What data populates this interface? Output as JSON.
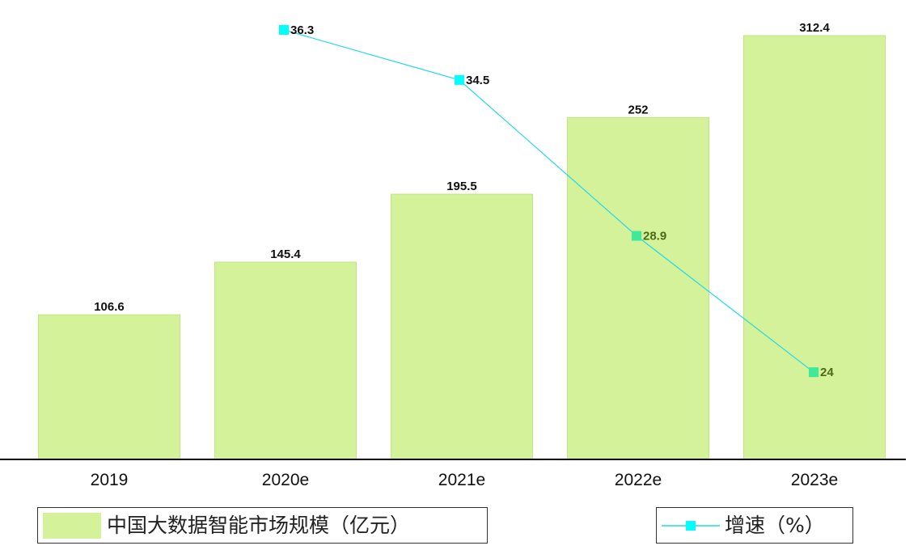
{
  "chart_data": {
    "type": "bar",
    "categories": [
      "2019",
      "2020e",
      "2021e",
      "2022e",
      "2023e"
    ],
    "series": [
      {
        "name": "中国大数据智能市场规模（亿元）",
        "type": "bar",
        "axis": "left",
        "values": [
          106.6,
          145.4,
          195.5,
          252,
          312.4
        ],
        "value_labels": [
          "106.6",
          "145.4",
          "195.5",
          "252",
          "312.4"
        ],
        "color": "#d4f29a"
      },
      {
        "name": "增速（%）",
        "type": "line",
        "axis": "right",
        "values": [
          null,
          36.3,
          34.5,
          28.9,
          24
        ],
        "value_labels": [
          "",
          "36.3",
          "34.5",
          "28.9",
          "24"
        ],
        "color": "#20d8e8",
        "marker_colors": [
          "#00ffff",
          "#00ffff",
          "#00ffff",
          "#40e89a",
          "#40e89a"
        ],
        "label_colors": [
          "#111111",
          "#111111",
          "#111111",
          "#4a6b1a",
          "#4a6b1a"
        ]
      }
    ],
    "ylim_left": [
      0,
      312.4
    ],
    "ylim_right": [
      22,
      36.3
    ],
    "grid": false,
    "legend_position": "bottom",
    "title": "",
    "xlabel": "",
    "ylabel": ""
  },
  "legend": {
    "bar_label": "中国大数据智能市场规模（亿元）",
    "line_label": "增速（%）"
  }
}
